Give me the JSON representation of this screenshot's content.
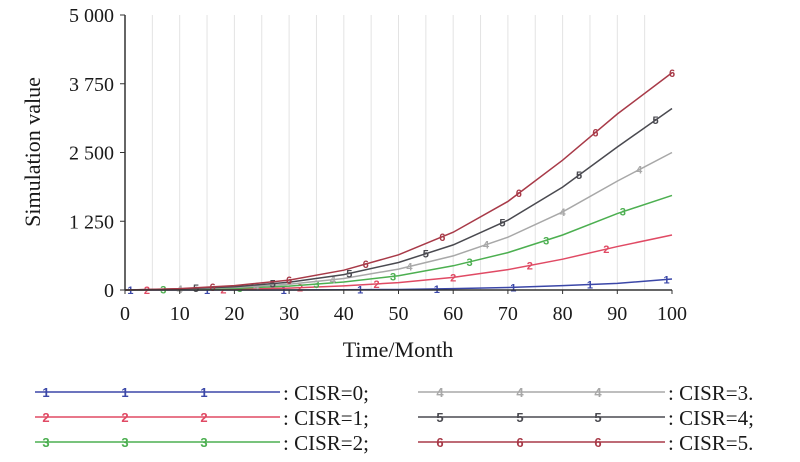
{
  "chart_data": {
    "type": "line",
    "title": "",
    "xlabel": "Time/Month",
    "ylabel": "Simulation value",
    "xlim": [
      0,
      100
    ],
    "ylim": [
      0,
      5000
    ],
    "xticks": [
      0,
      10,
      20,
      30,
      40,
      50,
      60,
      70,
      80,
      90,
      100
    ],
    "xtick_labels": [
      "0",
      "10",
      "20",
      "30",
      "40",
      "50",
      "60",
      "70",
      "80",
      "90",
      "100"
    ],
    "yticks": [
      0,
      1250,
      2500,
      3750,
      5000
    ],
    "ytick_labels": [
      "0",
      "1 250",
      "2 500",
      "3 750",
      "5 000"
    ],
    "grid": {
      "vertical": true,
      "horizontal": false
    },
    "legend_position": "below",
    "x": [
      0,
      10,
      20,
      30,
      40,
      50,
      60,
      70,
      80,
      90,
      100
    ],
    "series": [
      {
        "name": ": CISR=0;",
        "marker": "1",
        "color": "#3b47a8",
        "values": [
          0,
          0,
          0,
          0,
          5,
          10,
          25,
          45,
          80,
          120,
          200
        ]
      },
      {
        "name": ": CISR=1;",
        "marker": "2",
        "color": "#e04a64",
        "values": [
          0,
          5,
          15,
          35,
          75,
          135,
          230,
          370,
          560,
          790,
          1000
        ]
      },
      {
        "name": ": CISR=2;",
        "marker": "3",
        "color": "#4caf50",
        "values": [
          0,
          10,
          30,
          70,
          145,
          260,
          440,
          680,
          1000,
          1390,
          1720
        ]
      },
      {
        "name": ": CISR=3.",
        "marker": "4",
        "color": "#a8a8a8",
        "values": [
          0,
          15,
          45,
          105,
          210,
          380,
          620,
          960,
          1420,
          1980,
          2500
        ]
      },
      {
        "name": ": CISR=4;",
        "marker": "5",
        "color": "#4a4a50",
        "values": [
          0,
          20,
          60,
          140,
          280,
          500,
          820,
          1270,
          1870,
          2600,
          3300
        ]
      },
      {
        "name": ": CISR=5.",
        "marker": "6",
        "color": "#a83a48",
        "values": [
          0,
          25,
          80,
          180,
          360,
          640,
          1050,
          1610,
          2360,
          3200,
          3950
        ]
      }
    ]
  }
}
